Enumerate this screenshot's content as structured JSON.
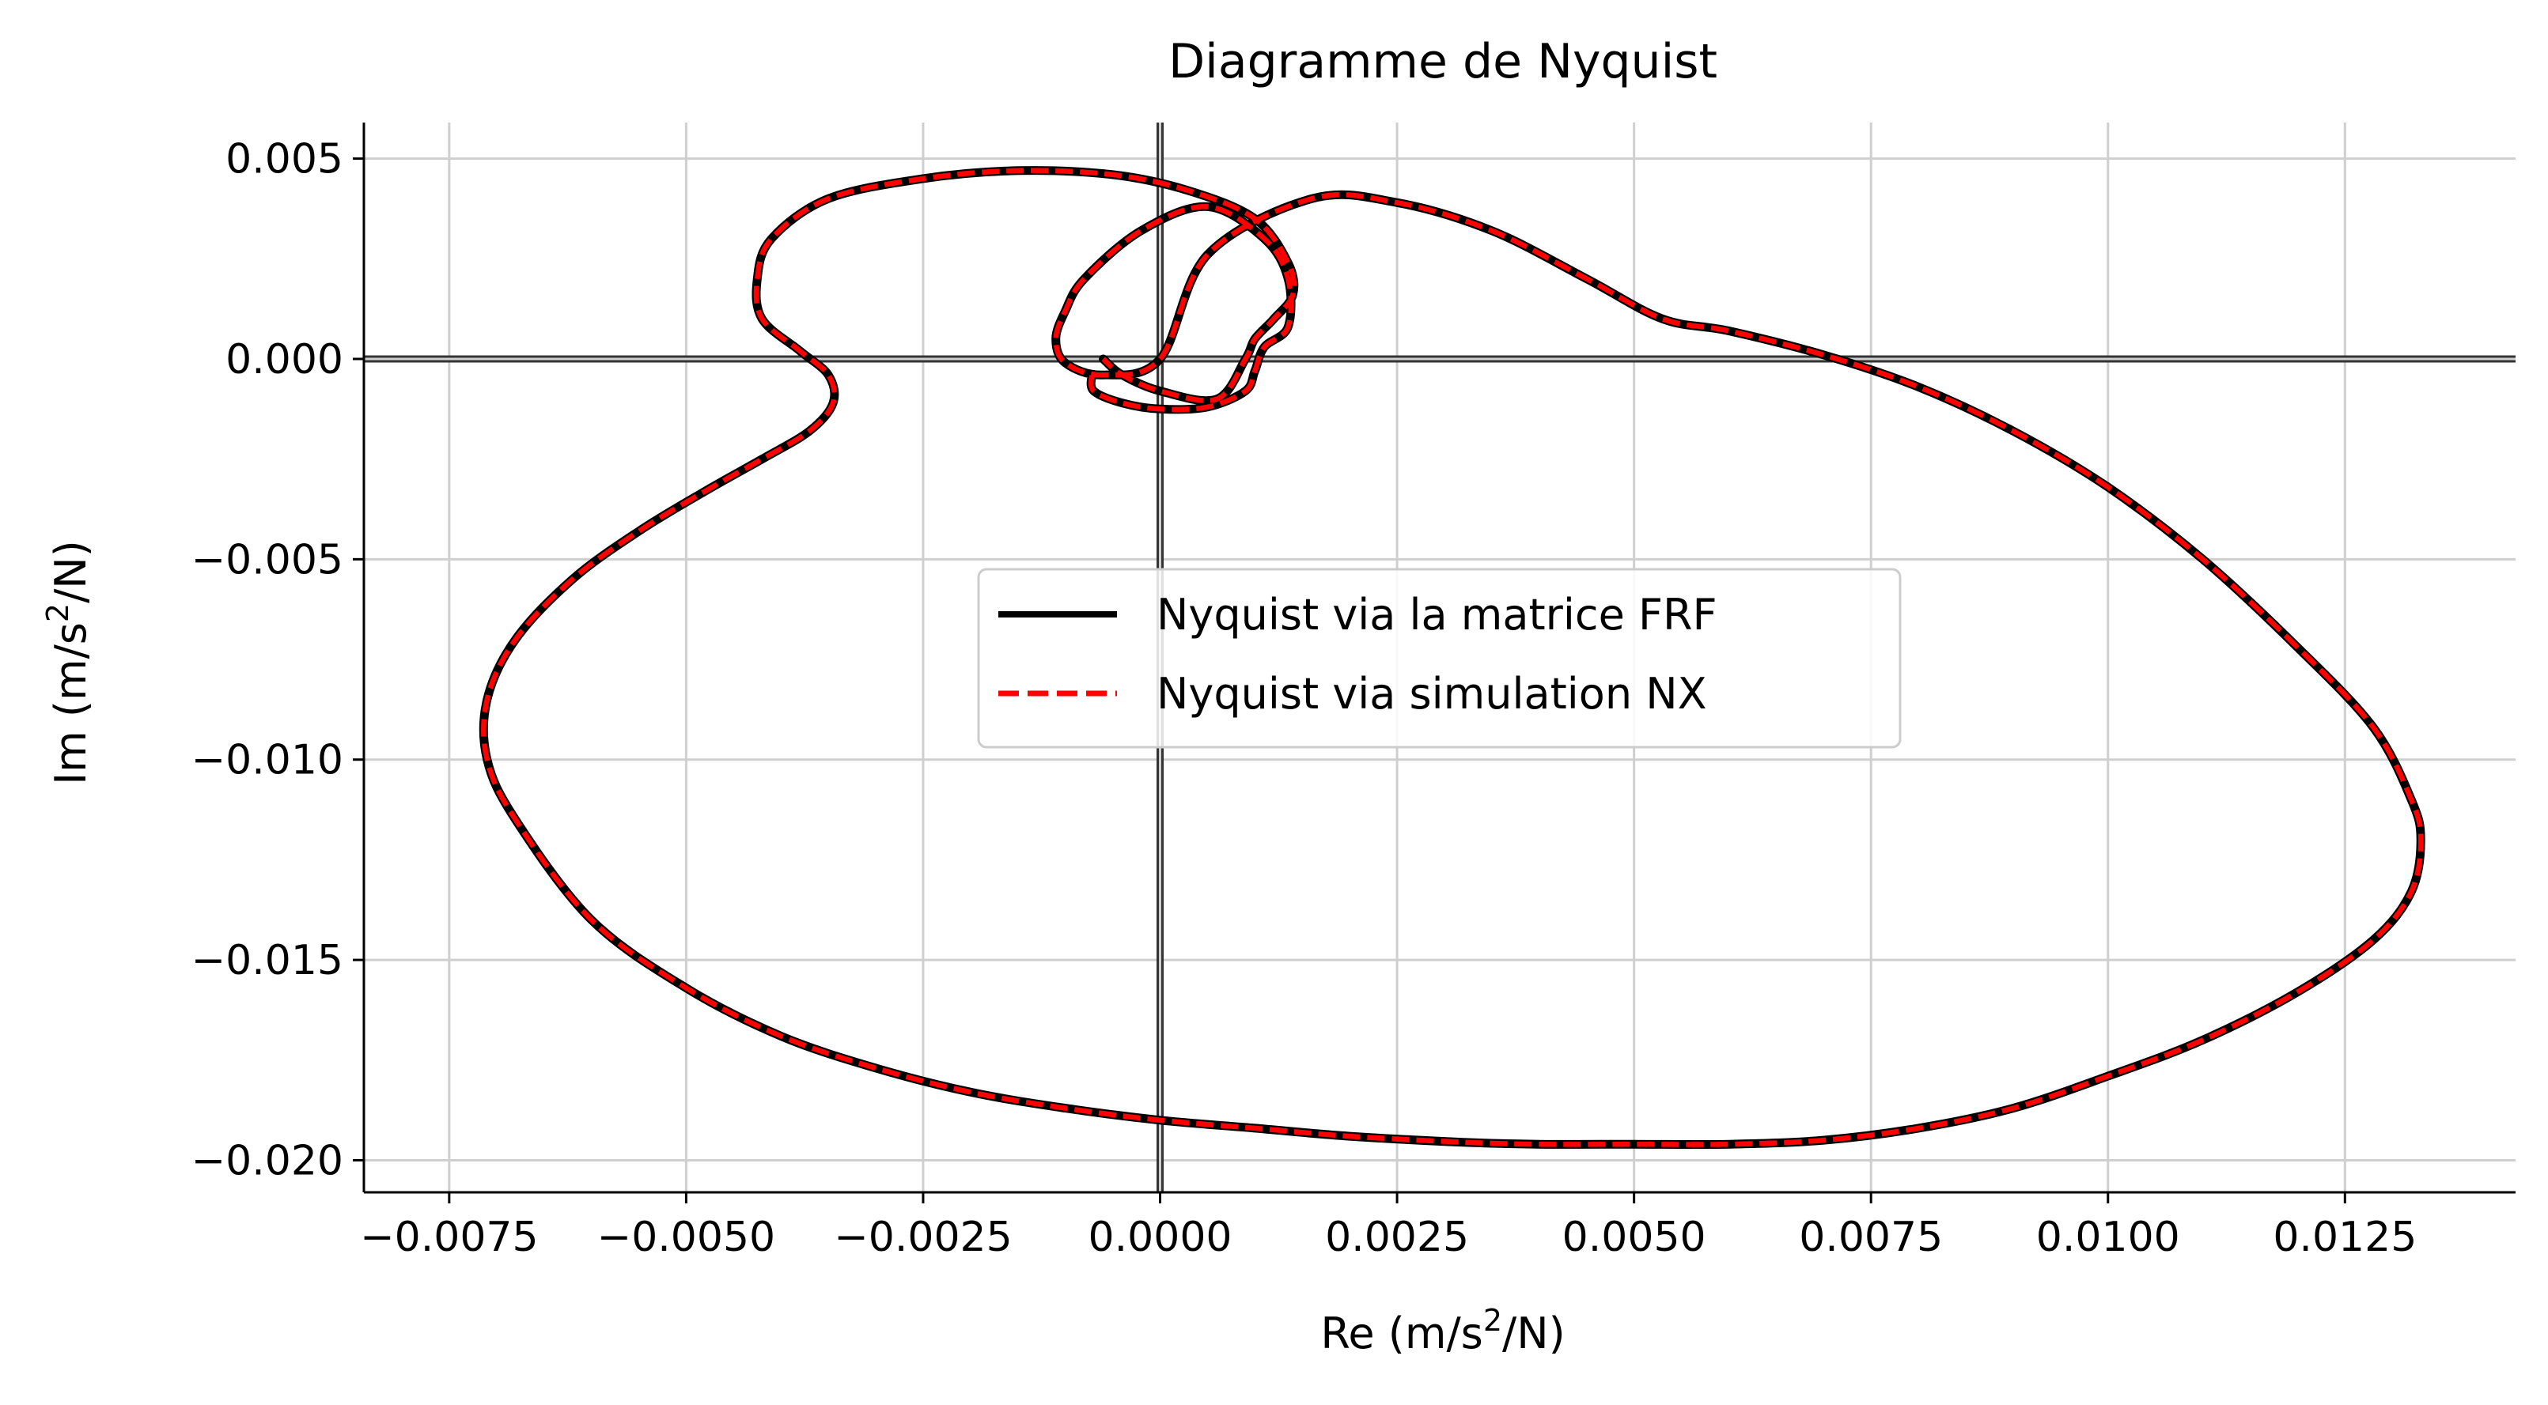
{
  "chart_data": {
    "type": "line",
    "title": "Diagramme de Nyquist",
    "xlabel": {
      "prefix": "Re (m/s",
      "sup": "2",
      "suffix": "/N)"
    },
    "ylabel": {
      "prefix": "Im (m/s",
      "sup": "2",
      "suffix": "/N)"
    },
    "xlim": [
      -0.0084,
      0.0143
    ],
    "ylim": [
      -0.0208,
      0.0059
    ],
    "x_ticks": [
      -0.0075,
      -0.005,
      -0.0025,
      0.0,
      0.0025,
      0.005,
      0.0075,
      0.01,
      0.0125
    ],
    "x_tick_labels": [
      "−0.0075",
      "−0.0050",
      "−0.0025",
      "0.0000",
      "0.0025",
      "0.0050",
      "0.0075",
      "0.0100",
      "0.0125"
    ],
    "y_ticks": [
      0.005,
      0.0,
      -0.005,
      -0.01,
      -0.015,
      -0.02
    ],
    "y_tick_labels": [
      "0.005",
      "0.000",
      "−0.005",
      "−0.010",
      "−0.015",
      "−0.020"
    ],
    "grid": true,
    "zero_lines": true,
    "legend_position": "center",
    "series": [
      {
        "name": "Nyquist via la matrice FRF",
        "color": "#000000",
        "style": "solid"
      },
      {
        "name": "Nyquist via simulation NX",
        "color": "#ff0000",
        "style": "dashed"
      }
    ],
    "x": [
      -0.00072,
      -0.0007,
      -0.0004,
      0.0,
      0.0005,
      0.0009,
      0.001,
      0.0011,
      0.00135,
      0.00135,
      0.0011,
      0.0005,
      -0.0002,
      -0.0008,
      -0.001,
      -0.0011,
      -0.001,
      -0.0006,
      0.0,
      0.0005,
      0.0016,
      0.0025,
      0.0035,
      0.0045,
      0.0053,
      0.006,
      0.007,
      0.008,
      0.009,
      0.01,
      0.011,
      0.012,
      0.0128,
      0.0132,
      0.0133,
      0.0132,
      0.0128,
      0.012,
      0.011,
      0.01,
      0.009,
      0.008,
      0.007,
      0.006,
      0.005,
      0.004,
      0.0032,
      0.002,
      0.001,
      0.0,
      -0.001,
      -0.002,
      -0.003,
      -0.004,
      -0.005,
      -0.006,
      -0.0068,
      -0.0071,
      -0.0071,
      -0.0068,
      -0.0062,
      -0.0055,
      -0.0048,
      -0.0042,
      -0.0037,
      -0.00345,
      -0.0035,
      -0.0038,
      -0.0042,
      -0.00425,
      -0.0041,
      -0.0035,
      -0.0025,
      -0.0015,
      -0.0005,
      0.0003,
      0.001,
      0.00135,
      0.0014,
      0.0012,
      0.001,
      0.0009,
      0.0006,
      0.0,
      -0.0004,
      -0.0006
    ],
    "y": [
      -0.0004,
      -0.0008,
      -0.0011,
      -0.00125,
      -0.0012,
      -0.0008,
      -0.0003,
      0.0003,
      0.0008,
      0.002,
      0.003,
      0.0038,
      0.0032,
      0.002,
      0.0012,
      0.0005,
      -0.0001,
      -0.0004,
      0.0,
      0.0026,
      0.004,
      0.0039,
      0.0032,
      0.002,
      0.001,
      0.0007,
      0.0001,
      -0.0007,
      -0.0018,
      -0.0032,
      -0.005,
      -0.0072,
      -0.0092,
      -0.011,
      -0.012,
      -0.0133,
      -0.0145,
      -0.0158,
      -0.017,
      -0.0179,
      -0.0187,
      -0.0192,
      -0.0195,
      -0.0196,
      -0.0196,
      -0.0196,
      -0.01955,
      -0.0194,
      -0.0192,
      -0.019,
      -0.0187,
      -0.0183,
      -0.0177,
      -0.0169,
      -0.0157,
      -0.014,
      -0.0115,
      -0.01,
      -0.0085,
      -0.007,
      -0.0055,
      -0.0043,
      -0.0033,
      -0.0025,
      -0.0018,
      -0.0011,
      -0.0004,
      0.0002,
      0.001,
      0.002,
      0.003,
      0.004,
      0.0045,
      0.0047,
      0.0046,
      0.0042,
      0.0035,
      0.0024,
      0.0016,
      0.001,
      0.0005,
      0.0,
      -0.001,
      -0.0008,
      -0.0004,
      0.0
    ]
  }
}
